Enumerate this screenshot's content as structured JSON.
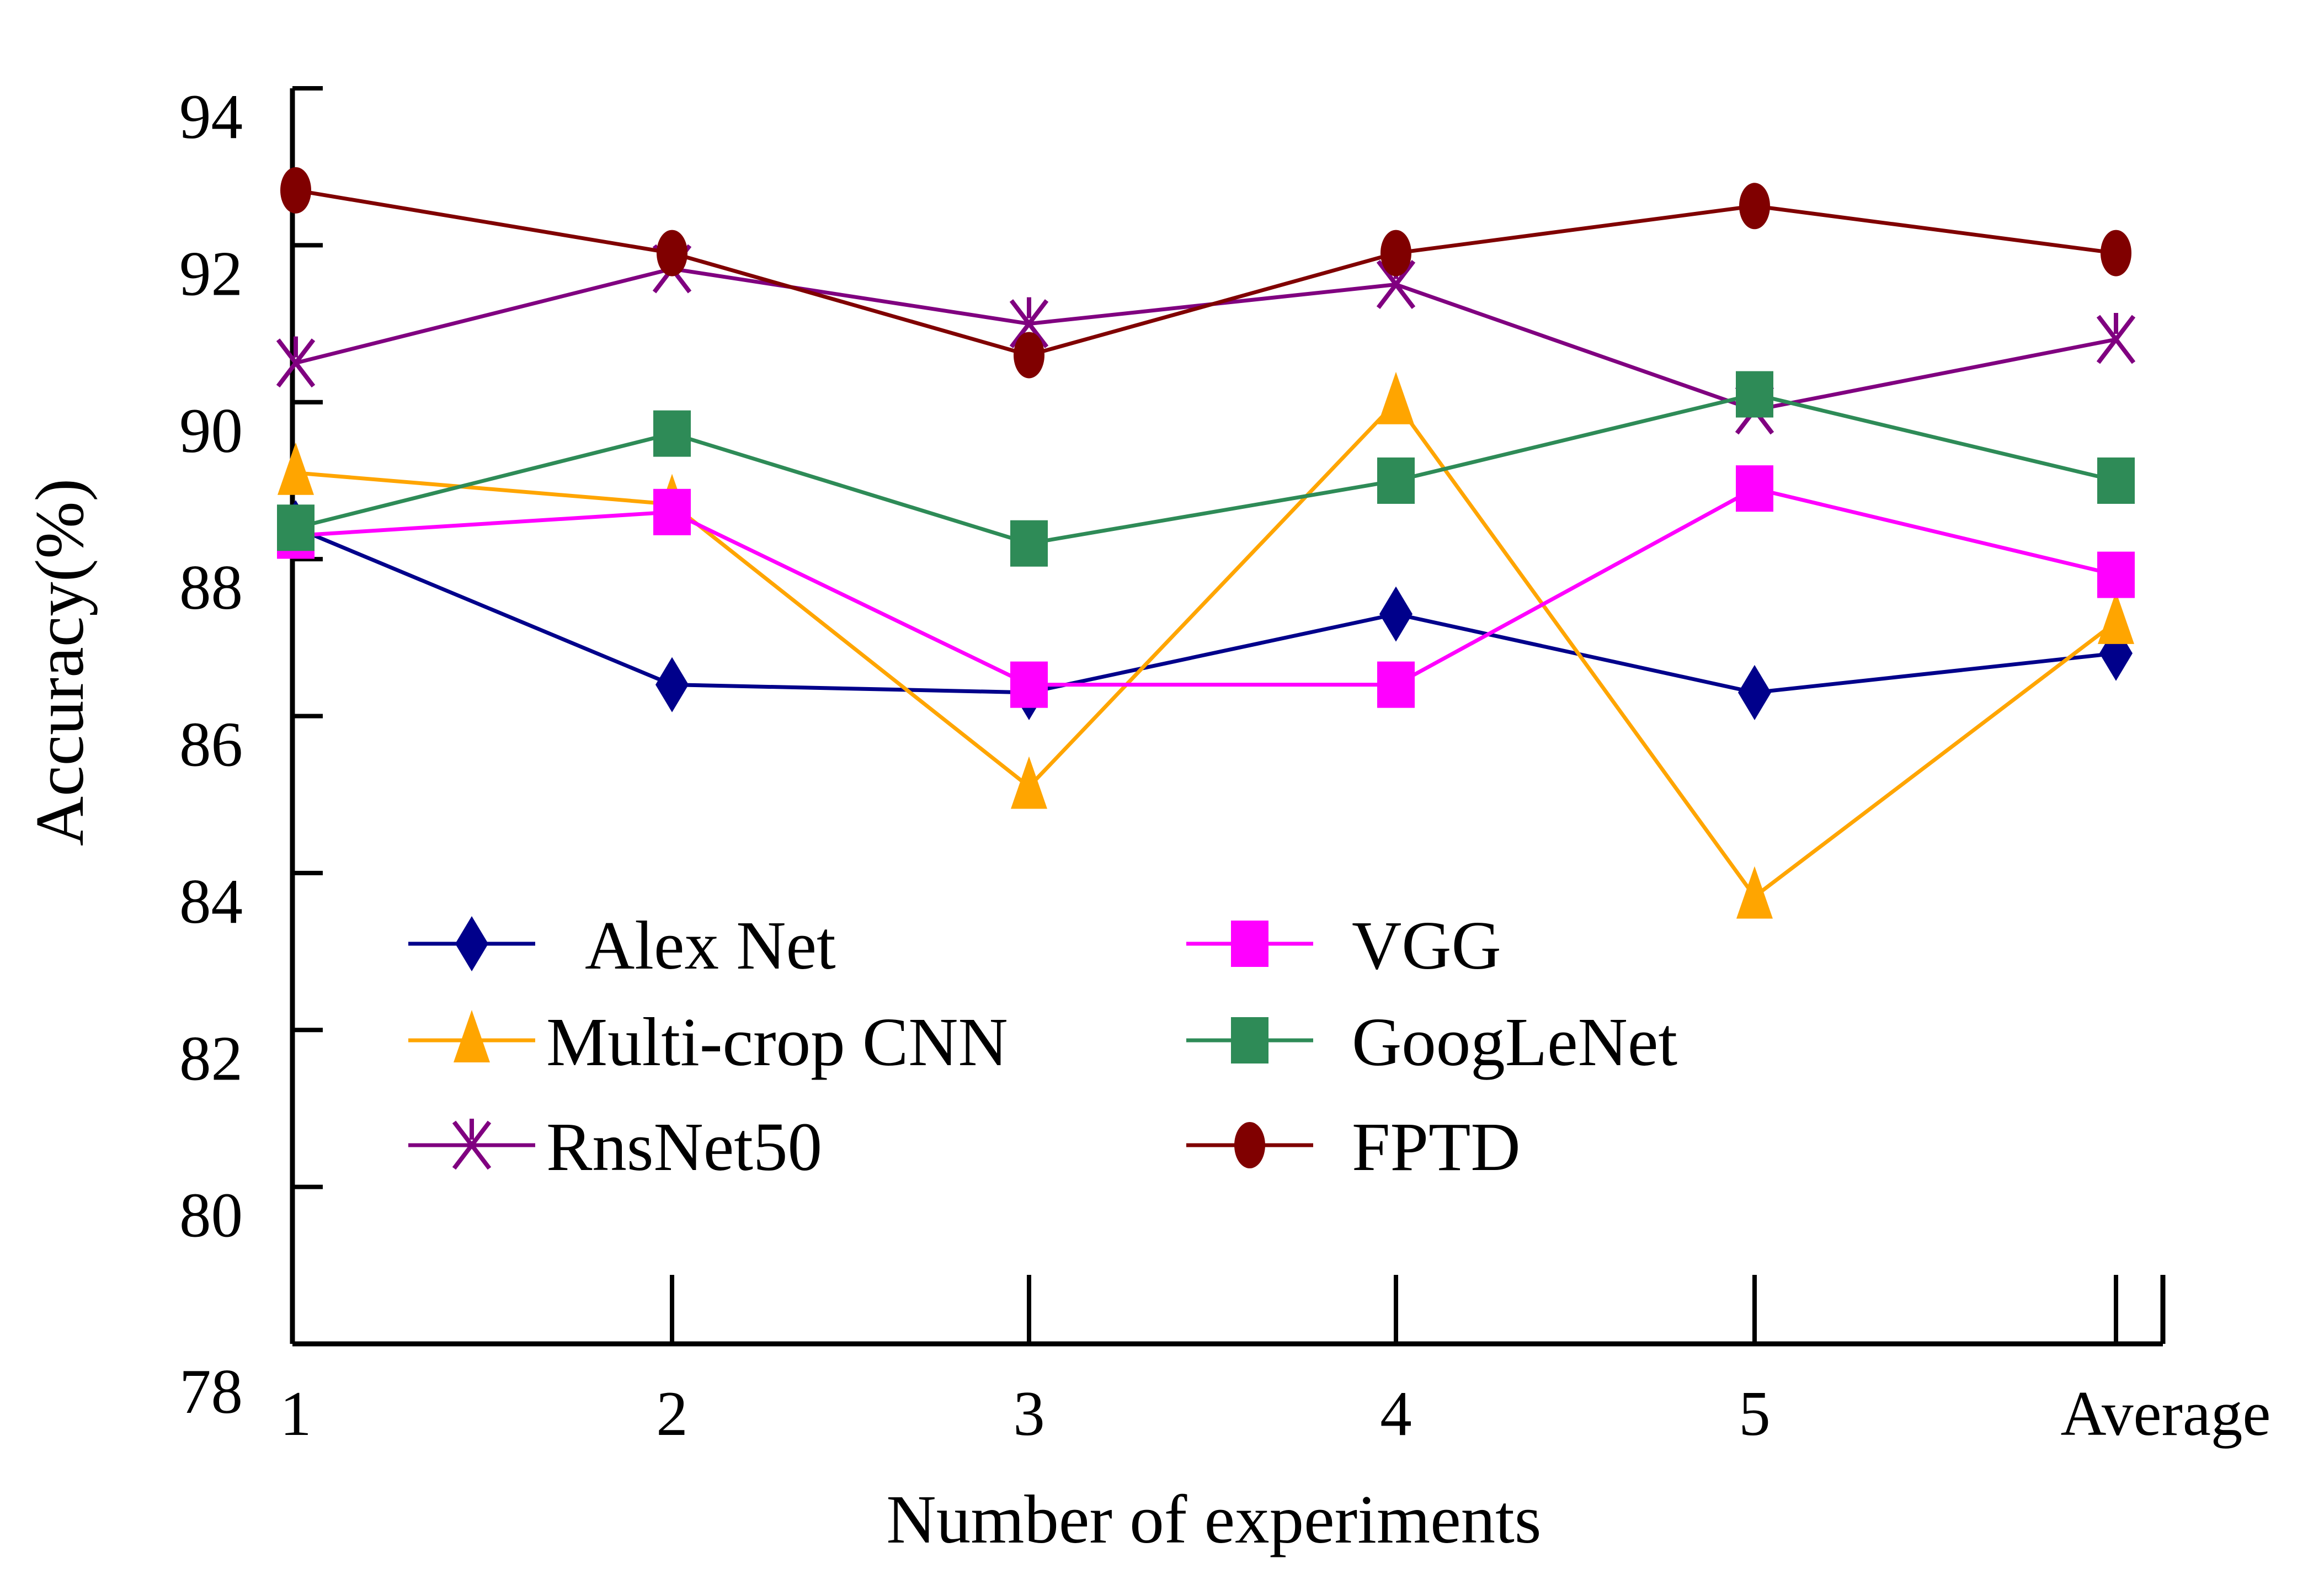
{
  "chart_data": {
    "type": "line",
    "xlabel": "Number of experiments",
    "ylabel": "Accuracy(%)",
    "categories": [
      "1",
      "2",
      "3",
      "4",
      "5",
      "Average"
    ],
    "ylim": [
      78,
      94
    ],
    "yticks": [
      "78",
      "80",
      "82",
      "84",
      "86",
      "88",
      "90",
      "92",
      "94"
    ],
    "legend_position": "lower-left",
    "grid": false,
    "series": [
      {
        "name": "Alex Net",
        "color": "#00008B",
        "marker": "diamond",
        "values": [
          88.4,
          86.4,
          86.3,
          87.3,
          86.3,
          86.8
        ]
      },
      {
        "name": "Multi-crop CNN",
        "color": "#FFA500",
        "marker": "triangle",
        "values": [
          89.1,
          88.7,
          85.1,
          90.0,
          83.7,
          87.2
        ]
      },
      {
        "name": "RnsNet50",
        "color": "#800080",
        "marker": "x",
        "values": [
          90.5,
          91.7,
          91.0,
          91.5,
          89.9,
          90.8
        ]
      },
      {
        "name": "VGG",
        "color": "#FF00FF",
        "marker": "square",
        "values": [
          88.3,
          88.6,
          86.4,
          86.4,
          88.9,
          87.8
        ]
      },
      {
        "name": "GoogLeNet",
        "color": "#2E8B57",
        "marker": "square",
        "values": [
          88.4,
          89.6,
          88.2,
          89.0,
          90.1,
          89.0
        ]
      },
      {
        "name": "FPTD",
        "color": "#800000",
        "marker": "circle",
        "values": [
          92.7,
          91.9,
          90.6,
          91.9,
          92.5,
          91.9
        ]
      }
    ]
  }
}
